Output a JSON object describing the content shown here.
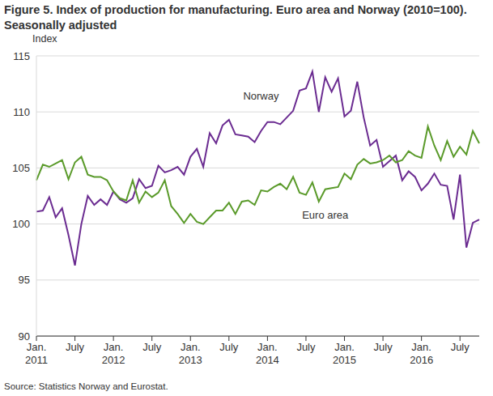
{
  "chart_data": {
    "type": "line",
    "title": "Figure 5. Index of production for manufacturing. Euro area and Norway (2010=100). Seasonally adjusted",
    "y_label": "Index",
    "source": "Source: Statistics Norway and Eurostat.",
    "categories": [
      "Jan. 2011",
      null,
      null,
      null,
      null,
      null,
      "July",
      null,
      null,
      null,
      null,
      null,
      "Jan. 2012",
      null,
      null,
      null,
      null,
      null,
      "July",
      null,
      null,
      null,
      null,
      null,
      "Jan. 2013",
      null,
      null,
      null,
      null,
      null,
      "July",
      null,
      null,
      null,
      null,
      null,
      "Jan. 2014",
      null,
      null,
      null,
      null,
      null,
      "July",
      null,
      null,
      null,
      null,
      null,
      "Jan. 2015",
      null,
      null,
      null,
      null,
      null,
      "July",
      null,
      null,
      null,
      null,
      null,
      "Jan. 2016",
      null,
      null,
      null,
      null,
      null,
      "July",
      null,
      null,
      null
    ],
    "series": [
      {
        "name": "Norway",
        "color": "#6b2c91",
        "values": [
          101.1,
          101.2,
          102.4,
          100.6,
          101.4,
          99.0,
          96.3,
          100.0,
          102.5,
          101.7,
          102.2,
          101.7,
          102.9,
          102.2,
          101.9,
          102.3,
          104.0,
          103.2,
          103.4,
          105.2,
          104.6,
          104.8,
          105.1,
          104.4,
          106.0,
          106.7,
          105.1,
          108.1,
          107.2,
          108.8,
          109.3,
          108.0,
          107.9,
          107.8,
          107.3,
          108.3,
          109.1,
          109.1,
          108.9,
          109.5,
          110.1,
          111.9,
          112.1,
          113.6,
          110.0,
          113.1,
          111.8,
          113.0,
          109.6,
          110.1,
          112.7,
          109.5,
          107.0,
          107.5,
          105.1,
          105.6,
          106.1,
          103.9,
          104.7,
          104.2,
          103.0,
          103.6,
          104.5,
          103.5,
          103.4,
          100.4,
          104.4,
          97.9,
          100.1,
          100.4
        ]
      },
      {
        "name": "Euro area",
        "color": "#5a9a2a",
        "values": [
          103.9,
          105.3,
          105.1,
          105.4,
          105.7,
          104.0,
          105.5,
          106.0,
          104.4,
          104.2,
          104.2,
          103.9,
          102.9,
          102.3,
          102.1,
          103.9,
          101.9,
          102.9,
          102.4,
          102.8,
          103.9,
          101.6,
          100.9,
          100.1,
          100.9,
          100.2,
          100.0,
          100.6,
          101.2,
          101.2,
          101.9,
          100.9,
          102.0,
          102.1,
          101.7,
          103.0,
          102.9,
          103.3,
          103.6,
          103.1,
          104.2,
          102.8,
          102.6,
          103.7,
          102.0,
          103.1,
          103.2,
          103.3,
          104.5,
          104.0,
          105.3,
          105.8,
          105.4,
          105.5,
          105.7,
          106.1,
          105.5,
          105.7,
          106.5,
          106.1,
          105.9,
          108.7,
          107.0,
          105.7,
          107.4,
          106.0,
          106.9,
          106.2,
          108.3,
          107.2
        ]
      }
    ],
    "ylim": [
      90,
      115
    ],
    "yticks": [
      90,
      95,
      100,
      105,
      110,
      115
    ],
    "grid": true
  }
}
